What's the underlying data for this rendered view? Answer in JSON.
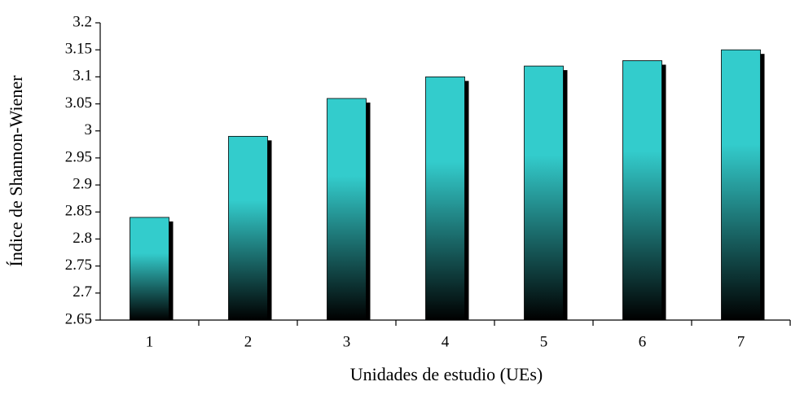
{
  "chart_data": {
    "type": "bar",
    "x_label": "Unidades de estudio (UEs)",
    "y_label": "Índice de Shannon-Wiener",
    "categories": [
      "1",
      "2",
      "3",
      "4",
      "5",
      "6",
      "7"
    ],
    "values": [
      2.84,
      2.99,
      3.06,
      3.1,
      3.12,
      3.13,
      3.15
    ],
    "color": "#33cccc",
    "ylim": [
      2.65,
      3.2
    ],
    "yticks": [
      2.65,
      2.7,
      2.75,
      2.8,
      2.85,
      2.9,
      2.95,
      3,
      3.05,
      3.1,
      3.15,
      3.2
    ],
    "grid": false
  }
}
